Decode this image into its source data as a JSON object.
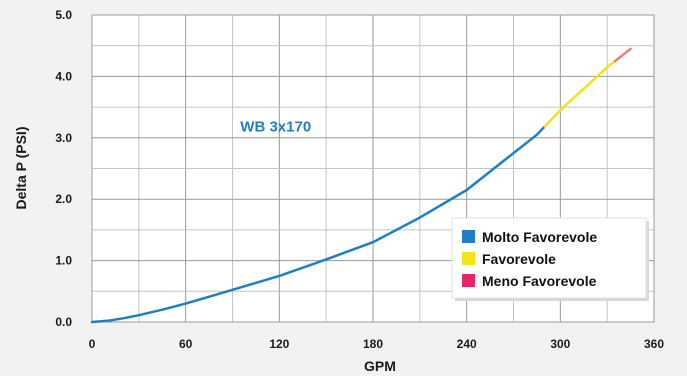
{
  "chart_data": {
    "type": "line",
    "title": "",
    "xlabel": "GPM",
    "ylabel": "Delta P (PSI)",
    "xlim": [
      0,
      360
    ],
    "ylim": [
      0,
      5
    ],
    "grid": true,
    "x_ticks": [
      "0",
      "60",
      "120",
      "180",
      "240",
      "300",
      "360"
    ],
    "y_ticks": [
      "0.0",
      "1.0",
      "2.0",
      "3.0",
      "4.0",
      "5.0"
    ],
    "annotation": "WB 3x170",
    "annotation_color": "#1f7fc4",
    "series": [
      {
        "name": "WB 3x170",
        "x": [
          0,
          10,
          20,
          30,
          45,
          60,
          80,
          100,
          120,
          150,
          180,
          210,
          240,
          270,
          285,
          300,
          315,
          330,
          345
        ],
        "y": [
          0,
          0.02,
          0.06,
          0.11,
          0.2,
          0.3,
          0.45,
          0.6,
          0.75,
          1.02,
          1.3,
          1.7,
          2.15,
          2.75,
          3.05,
          3.45,
          3.8,
          4.15,
          4.45
        ],
        "color_bands": [
          {
            "from": 0,
            "to": 290,
            "color": "#1f7fc4"
          },
          {
            "from": 290,
            "to": 335,
            "color": "#f5e21b"
          },
          {
            "from": 335,
            "to": 345,
            "color": "#f08070"
          }
        ]
      }
    ],
    "legend": {
      "placement": "bottom-right",
      "items": [
        {
          "label": "Molto Favorevole",
          "color": "#1f7fc4"
        },
        {
          "label": "Favorevole",
          "color": "#f5e21b"
        },
        {
          "label": "Meno Favorevole",
          "color": "#e8246a"
        }
      ]
    }
  }
}
